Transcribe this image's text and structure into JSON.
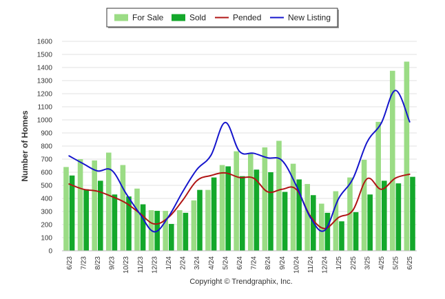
{
  "chart_data": {
    "type": "bar",
    "ylabel": "Number of Homes",
    "xlabel": "",
    "ylim": [
      0,
      1600
    ],
    "yticks": [
      0,
      100,
      200,
      300,
      400,
      500,
      600,
      700,
      800,
      900,
      1000,
      1100,
      1200,
      1300,
      1400,
      1500,
      1600
    ],
    "grid": true,
    "legend_position": "top-center",
    "categories": [
      "6/23",
      "7/23",
      "8/23",
      "9/23",
      "10/23",
      "11/23",
      "12/23",
      "1/24",
      "2/24",
      "3/24",
      "4/24",
      "5/24",
      "6/24",
      "7/24",
      "8/24",
      "9/24",
      "10/24",
      "11/24",
      "12/24",
      "1/25",
      "2/25",
      "3/25",
      "4/25",
      "5/25",
      "6/25"
    ],
    "series": [
      {
        "name": "For Sale",
        "kind": "bar",
        "color": "#9bdc85",
        "values": [
          640,
          700,
          690,
          750,
          655,
          475,
          310,
          305,
          310,
          385,
          465,
          655,
          760,
          745,
          790,
          840,
          665,
          510,
          360,
          455,
          560,
          695,
          985,
          1375,
          1445
        ]
      },
      {
        "name": "Sold",
        "kind": "bar",
        "color": "#14a82b",
        "values": [
          575,
          470,
          535,
          430,
          415,
          355,
          305,
          205,
          290,
          465,
          560,
          645,
          570,
          620,
          600,
          450,
          545,
          425,
          290,
          225,
          295,
          430,
          535,
          515,
          565
        ]
      },
      {
        "name": "Pended",
        "kind": "line",
        "color": "#b01515",
        "values": [
          510,
          470,
          455,
          415,
          365,
          285,
          205,
          255,
          385,
          535,
          575,
          595,
          560,
          555,
          450,
          470,
          470,
          265,
          170,
          255,
          310,
          550,
          470,
          555,
          585
        ]
      },
      {
        "name": "New Listing",
        "kind": "line",
        "color": "#1515cc",
        "values": [
          725,
          665,
          610,
          615,
          440,
          280,
          145,
          260,
          450,
          620,
          730,
          980,
          760,
          745,
          710,
          690,
          500,
          255,
          155,
          400,
          550,
          830,
          975,
          1225,
          985
        ]
      }
    ]
  },
  "credit": "Copyright © Trendgraphix, Inc."
}
